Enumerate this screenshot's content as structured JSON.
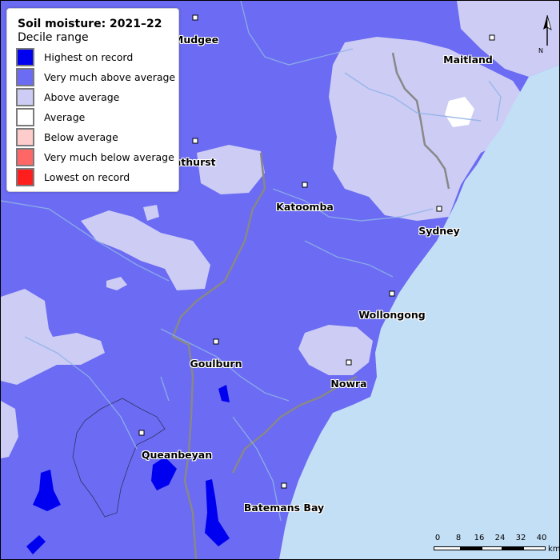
{
  "legend": {
    "title": "Soil moisture: 2021–22",
    "subtitle": "Decile range",
    "items": [
      {
        "label": "Highest on record",
        "color": "#0000f0"
      },
      {
        "label": "Very much above average",
        "color": "#6b6bf3"
      },
      {
        "label": "Above average",
        "color": "#ccccf5"
      },
      {
        "label": "Average",
        "color": "#ffffff"
      },
      {
        "label": "Below average",
        "color": "#ffcccc"
      },
      {
        "label": "Very much below average",
        "color": "#ff6666"
      },
      {
        "label": "Lowest on record",
        "color": "#ff1e1e"
      }
    ]
  },
  "towns": [
    {
      "id": "mudgee",
      "label": "Mudgee"
    },
    {
      "id": "bathurst",
      "label": "Bathurst"
    },
    {
      "id": "maitland",
      "label": "Maitland"
    },
    {
      "id": "katoomba",
      "label": "Katoomba"
    },
    {
      "id": "sydney",
      "label": "Sydney"
    },
    {
      "id": "wollongong",
      "label": "Wollongong"
    },
    {
      "id": "goulburn",
      "label": "Goulburn"
    },
    {
      "id": "nowra",
      "label": "Nowra"
    },
    {
      "id": "queanbeyan",
      "label": "Queanbeyan"
    },
    {
      "id": "batemans-bay",
      "label": "Batemans Bay"
    }
  ],
  "north_arrow": {
    "label": "N"
  },
  "scale_bar": {
    "ticks": [
      "0",
      "8",
      "16",
      "24",
      "32",
      "40"
    ],
    "unit": "km"
  },
  "colors": {
    "ocean": "#c3dff6",
    "river": "#8fb2e6",
    "boundary": "#888888"
  }
}
